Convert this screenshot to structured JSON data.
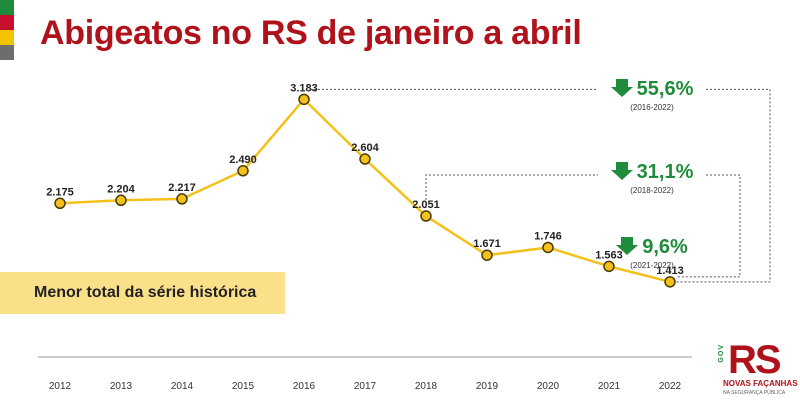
{
  "title": "Abigeatos no RS de janeiro a abril",
  "colors": {
    "title": "#b0121b",
    "line": "#f2c21b",
    "marker_fill": "#f2c21b",
    "marker_stroke": "#4a3a00",
    "decrease_green": "#1e8c3a",
    "highlight_box": "#fbe08a",
    "flag_green": "#1e8c3a",
    "flag_red": "#c8102e",
    "flag_yellow": "#f5c400",
    "flag_gray": "#6d6d6d"
  },
  "chart_data": {
    "type": "line",
    "categories": [
      "2012",
      "2013",
      "2014",
      "2015",
      "2016",
      "2017",
      "2018",
      "2019",
      "2020",
      "2021",
      "2022"
    ],
    "values": [
      2175,
      2204,
      2217,
      2490,
      3183,
      2604,
      2051,
      1671,
      1746,
      1563,
      1413
    ],
    "value_labels": [
      "2.175",
      "2.204",
      "2.217",
      "2.490",
      "3.183",
      "2.604",
      "2.051",
      "1.671",
      "1.746",
      "1.563",
      "1.413"
    ],
    "grid": false,
    "legend": "none",
    "annotations": [
      {
        "percent": "55,6%",
        "period": "(2016-2022)",
        "from": "2016",
        "to": "2022",
        "direction": "down"
      },
      {
        "percent": "31,1%",
        "period": "(2018-2022)",
        "from": "2018",
        "to": "2022",
        "direction": "down"
      },
      {
        "percent": "9,6%",
        "period": "(2021-2022)",
        "from": "2021",
        "to": "2022",
        "direction": "down"
      }
    ]
  },
  "min_note": "Menor total da série histórica",
  "logo": {
    "gov": "GOV",
    "mark": "RS",
    "tagline": "NOVAS FAÇANHAS",
    "sub": "NA SEGURANÇA PÚBLICA",
    "icon": "rs-government-logo"
  }
}
